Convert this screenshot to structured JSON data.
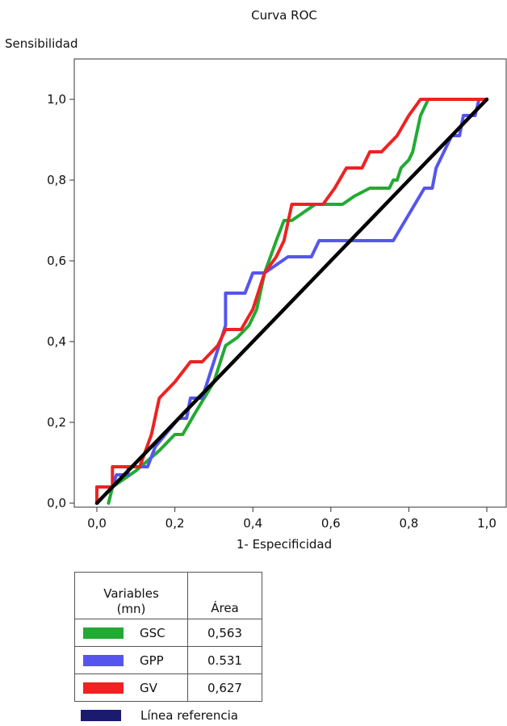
{
  "chart_data": {
    "type": "line",
    "title": "Curva ROC",
    "xlabel": "1- Especificidad",
    "ylabel": "Sensibilidad",
    "xlim": [
      0,
      1
    ],
    "ylim": [
      0,
      1
    ],
    "xticks": [
      "0,0",
      "0,2",
      "0,4",
      "0,6",
      "0,8",
      "1,0"
    ],
    "yticks": [
      "0,0",
      "0,2",
      "0,4",
      "0,6",
      "0,8",
      "1,0"
    ],
    "grid": false,
    "legend": {
      "header_variable": [
        "Variables",
        "(mn)"
      ],
      "header_area": "Área",
      "reference_label": "Línea referencia"
    },
    "series": [
      {
        "name": "GSC",
        "area": "0,563",
        "color": "#22aa33",
        "points": [
          [
            0.03,
            0
          ],
          [
            0.04,
            0.04
          ],
          [
            0.1,
            0.08
          ],
          [
            0.16,
            0.13
          ],
          [
            0.2,
            0.17
          ],
          [
            0.22,
            0.17
          ],
          [
            0.25,
            0.22
          ],
          [
            0.3,
            0.3
          ],
          [
            0.33,
            0.39
          ],
          [
            0.36,
            0.41
          ],
          [
            0.39,
            0.44
          ],
          [
            0.41,
            0.48
          ],
          [
            0.43,
            0.57
          ],
          [
            0.46,
            0.65
          ],
          [
            0.48,
            0.7
          ],
          [
            0.5,
            0.7
          ],
          [
            0.53,
            0.72
          ],
          [
            0.56,
            0.74
          ],
          [
            0.63,
            0.74
          ],
          [
            0.66,
            0.76
          ],
          [
            0.7,
            0.78
          ],
          [
            0.75,
            0.78
          ],
          [
            0.76,
            0.8
          ],
          [
            0.77,
            0.8
          ],
          [
            0.78,
            0.83
          ],
          [
            0.8,
            0.85
          ],
          [
            0.81,
            0.87
          ],
          [
            0.83,
            0.96
          ],
          [
            0.85,
            1.0
          ]
        ]
      },
      {
        "name": "GPP",
        "area": "0.531",
        "color": "#5555ee",
        "points": [
          [
            0,
            0
          ],
          [
            0,
            0.04
          ],
          [
            0.02,
            0.04
          ],
          [
            0.04,
            0.04
          ],
          [
            0.05,
            0.07
          ],
          [
            0.08,
            0.07
          ],
          [
            0.08,
            0.09
          ],
          [
            0.13,
            0.09
          ],
          [
            0.15,
            0.14
          ],
          [
            0.21,
            0.21
          ],
          [
            0.23,
            0.21
          ],
          [
            0.24,
            0.26
          ],
          [
            0.27,
            0.26
          ],
          [
            0.3,
            0.35
          ],
          [
            0.33,
            0.44
          ],
          [
            0.33,
            0.52
          ],
          [
            0.38,
            0.52
          ],
          [
            0.4,
            0.57
          ],
          [
            0.43,
            0.57
          ],
          [
            0.46,
            0.59
          ],
          [
            0.49,
            0.61
          ],
          [
            0.55,
            0.61
          ],
          [
            0.57,
            0.65
          ],
          [
            0.76,
            0.65
          ],
          [
            0.84,
            0.78
          ],
          [
            0.86,
            0.78
          ],
          [
            0.87,
            0.83
          ],
          [
            0.89,
            0.87
          ],
          [
            0.91,
            0.91
          ],
          [
            0.93,
            0.91
          ],
          [
            0.94,
            0.96
          ],
          [
            0.97,
            0.96
          ],
          [
            0.98,
            1.0
          ],
          [
            1.0,
            1.0
          ]
        ]
      },
      {
        "name": "GV",
        "area": "0,627",
        "color": "#ee2222",
        "points": [
          [
            0,
            0
          ],
          [
            0,
            0.04
          ],
          [
            0.04,
            0.04
          ],
          [
            0.04,
            0.09
          ],
          [
            0.11,
            0.09
          ],
          [
            0.14,
            0.17
          ],
          [
            0.16,
            0.26
          ],
          [
            0.2,
            0.3
          ],
          [
            0.24,
            0.35
          ],
          [
            0.27,
            0.35
          ],
          [
            0.31,
            0.39
          ],
          [
            0.33,
            0.43
          ],
          [
            0.37,
            0.43
          ],
          [
            0.4,
            0.48
          ],
          [
            0.43,
            0.57
          ],
          [
            0.46,
            0.61
          ],
          [
            0.48,
            0.65
          ],
          [
            0.5,
            0.74
          ],
          [
            0.58,
            0.74
          ],
          [
            0.61,
            0.78
          ],
          [
            0.64,
            0.83
          ],
          [
            0.68,
            0.83
          ],
          [
            0.7,
            0.87
          ],
          [
            0.73,
            0.87
          ],
          [
            0.77,
            0.91
          ],
          [
            0.8,
            0.96
          ],
          [
            0.83,
            1.0
          ],
          [
            1.0,
            1.0
          ]
        ]
      },
      {
        "name": "Línea referencia",
        "color": "#000000",
        "legend_color": "#1a1a6e",
        "points": [
          [
            0,
            0
          ],
          [
            1,
            1
          ]
        ]
      }
    ]
  }
}
